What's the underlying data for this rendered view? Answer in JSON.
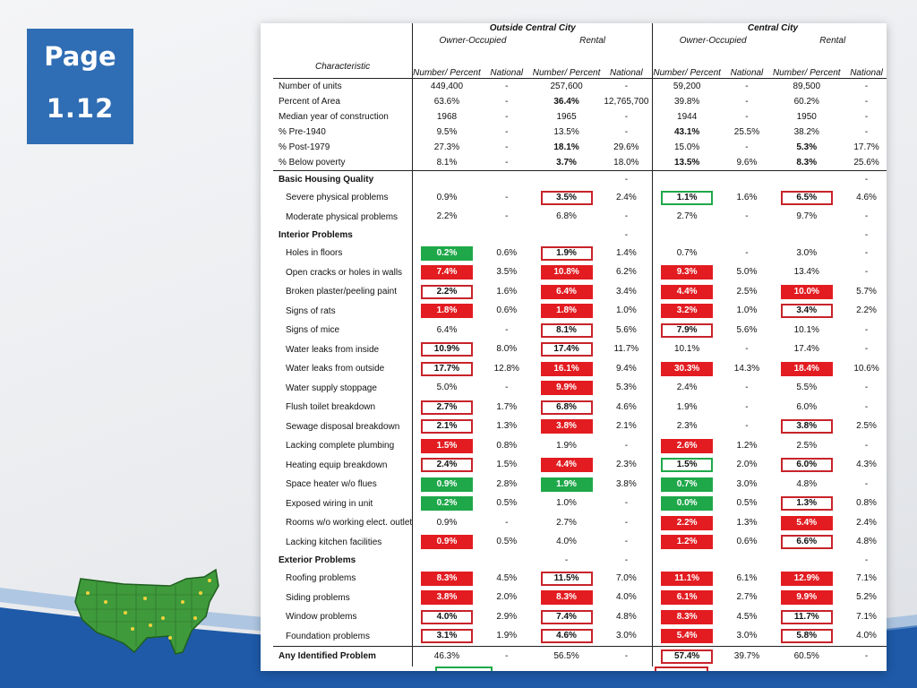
{
  "badge": {
    "line1": "Page",
    "line2": "1.12"
  },
  "colors": {
    "badge": "#2f6db4",
    "red": "#e21c21",
    "green": "#1fa84a",
    "box_red": "#c8232a",
    "wave_blue": "#1e5aa8"
  },
  "header": {
    "group_outside": "Outside Central City",
    "group_central": "Central City",
    "sub_owner": "Owner-Occupied",
    "sub_rental": "Rental",
    "characteristic": "Characteristic",
    "number_percent": "Number/ Percent",
    "national": "National"
  },
  "rows": [
    {
      "label": "Number of units",
      "v": [
        "449,400",
        "-",
        "257,600",
        "-",
        "59,200",
        "-",
        "89,500",
        "-"
      ]
    },
    {
      "label": "Percent of Area",
      "v": [
        "63.6%",
        "-",
        "36.4%",
        "12,765,700",
        "39.8%",
        "-",
        "60.2%",
        "-"
      ],
      "bold": [
        2
      ]
    },
    {
      "label": "Median year of construction",
      "v": [
        "1968",
        "-",
        "1965",
        "-",
        "1944",
        "-",
        "1950",
        "-"
      ]
    },
    {
      "label": "% Pre-1940",
      "v": [
        "9.5%",
        "-",
        "13.5%",
        "-",
        "43.1%",
        "25.5%",
        "38.2%",
        "-"
      ],
      "bold": [
        4
      ]
    },
    {
      "label": "% Post-1979",
      "v": [
        "27.3%",
        "-",
        "18.1%",
        "29.6%",
        "15.0%",
        "-",
        "5.3%",
        "17.7%"
      ],
      "bold": [
        2,
        6
      ]
    },
    {
      "label": "% Below poverty",
      "v": [
        "8.1%",
        "-",
        "3.7%",
        "18.0%",
        "13.5%",
        "9.6%",
        "8.3%",
        "25.6%"
      ],
      "bold": [
        2,
        4,
        6
      ]
    },
    {
      "section": "Basic Housing Quality",
      "v": [
        "",
        "",
        "",
        "-",
        "",
        "",
        "",
        "-"
      ]
    },
    {
      "label": "Severe physical problems",
      "v": [
        "0.9%",
        "-",
        "3.5%",
        "2.4%",
        "1.1%",
        "1.6%",
        "6.5%",
        "4.6%"
      ],
      "box": [
        2,
        6
      ],
      "gbox": [
        4
      ]
    },
    {
      "label": "Moderate physical problems",
      "v": [
        "2.2%",
        "-",
        "6.8%",
        "-",
        "2.7%",
        "-",
        "9.7%",
        "-"
      ]
    },
    {
      "section": "Interior Problems",
      "v": [
        "",
        "",
        "",
        "-",
        "",
        "",
        "",
        "-"
      ]
    },
    {
      "label": "Holes in floors",
      "v": [
        "0.2%",
        "0.6%",
        "1.9%",
        "1.4%",
        "0.7%",
        "-",
        "3.0%",
        "-"
      ],
      "grn": [
        0
      ],
      "box": [
        2
      ]
    },
    {
      "label": "Open cracks or holes in walls",
      "v": [
        "7.4%",
        "3.5%",
        "10.8%",
        "6.2%",
        "9.3%",
        "5.0%",
        "13.4%",
        "-"
      ],
      "red": [
        0,
        2,
        4
      ]
    },
    {
      "label": "Broken plaster/peeling paint",
      "v": [
        "2.2%",
        "1.6%",
        "6.4%",
        "3.4%",
        "4.4%",
        "2.5%",
        "10.0%",
        "5.7%"
      ],
      "box": [
        0
      ],
      "red": [
        2,
        4,
        6
      ]
    },
    {
      "label": "Signs of rats",
      "v": [
        "1.8%",
        "0.6%",
        "1.8%",
        "1.0%",
        "3.2%",
        "1.0%",
        "3.4%",
        "2.2%"
      ],
      "red": [
        0,
        2,
        4
      ],
      "box": [
        6
      ]
    },
    {
      "label": "Signs of mice",
      "v": [
        "6.4%",
        "-",
        "8.1%",
        "5.6%",
        "7.9%",
        "5.6%",
        "10.1%",
        "-"
      ],
      "box": [
        2,
        4
      ]
    },
    {
      "label": "Water leaks from inside",
      "v": [
        "10.9%",
        "8.0%",
        "17.4%",
        "11.7%",
        "10.1%",
        "-",
        "17.4%",
        "-"
      ],
      "box": [
        0,
        2
      ]
    },
    {
      "label": "Water leaks from outside",
      "v": [
        "17.7%",
        "12.8%",
        "16.1%",
        "9.4%",
        "30.3%",
        "14.3%",
        "18.4%",
        "10.6%"
      ],
      "box": [
        0
      ],
      "red": [
        2,
        4,
        6
      ]
    },
    {
      "label": "Water supply stoppage",
      "v": [
        "5.0%",
        "-",
        "9.9%",
        "5.3%",
        "2.4%",
        "-",
        "5.5%",
        "-"
      ],
      "red": [
        2
      ]
    },
    {
      "label": "Flush toilet breakdown",
      "v": [
        "2.7%",
        "1.7%",
        "6.8%",
        "4.6%",
        "1.9%",
        "-",
        "6.0%",
        "-"
      ],
      "box": [
        0,
        2
      ]
    },
    {
      "label": "Sewage disposal breakdown",
      "v": [
        "2.1%",
        "1.3%",
        "3.8%",
        "2.1%",
        "2.3%",
        "-",
        "3.8%",
        "2.5%"
      ],
      "box": [
        0,
        6
      ],
      "red": [
        2
      ]
    },
    {
      "label": "Lacking complete plumbing",
      "v": [
        "1.5%",
        "0.8%",
        "1.9%",
        "-",
        "2.6%",
        "1.2%",
        "2.5%",
        "-"
      ],
      "red": [
        0,
        4
      ]
    },
    {
      "label": "Heating equip breakdown",
      "v": [
        "2.4%",
        "1.5%",
        "4.4%",
        "2.3%",
        "1.5%",
        "2.0%",
        "6.0%",
        "4.3%"
      ],
      "box": [
        0,
        6
      ],
      "red": [
        2
      ],
      "gbox": [
        4
      ]
    },
    {
      "label": "Space heater w/o flues",
      "v": [
        "0.9%",
        "2.8%",
        "1.9%",
        "3.8%",
        "0.7%",
        "3.0%",
        "4.8%",
        "-"
      ],
      "grn": [
        0,
        2,
        4
      ]
    },
    {
      "label": "Exposed wiring in unit",
      "v": [
        "0.2%",
        "0.5%",
        "1.0%",
        "-",
        "0.0%",
        "0.5%",
        "1.3%",
        "0.8%"
      ],
      "grn": [
        0,
        4
      ],
      "box": [
        6
      ]
    },
    {
      "label": "Rooms w/o working elect. outlet",
      "v": [
        "0.9%",
        "-",
        "2.7%",
        "-",
        "2.2%",
        "1.3%",
        "5.4%",
        "2.4%"
      ],
      "red": [
        4,
        6
      ]
    },
    {
      "label": "Lacking kitchen facilities",
      "v": [
        "0.9%",
        "0.5%",
        "4.0%",
        "-",
        "1.2%",
        "0.6%",
        "6.6%",
        "4.8%"
      ],
      "red": [
        0,
        4
      ],
      "box": [
        6
      ]
    },
    {
      "section": "Exterior Problems",
      "v": [
        "",
        "",
        "-",
        "-",
        "",
        "",
        "",
        "-"
      ]
    },
    {
      "label": "Roofing problems",
      "v": [
        "8.3%",
        "4.5%",
        "11.5%",
        "7.0%",
        "11.1%",
        "6.1%",
        "12.9%",
        "7.1%"
      ],
      "red": [
        0,
        4,
        6
      ],
      "box": [
        2
      ]
    },
    {
      "label": "Siding problems",
      "v": [
        "3.8%",
        "2.0%",
        "8.3%",
        "4.0%",
        "6.1%",
        "2.7%",
        "9.9%",
        "5.2%"
      ],
      "red": [
        0,
        2,
        4,
        6
      ]
    },
    {
      "label": "Window problems",
      "v": [
        "4.0%",
        "2.9%",
        "7.4%",
        "4.8%",
        "8.3%",
        "4.5%",
        "11.7%",
        "7.1%"
      ],
      "box": [
        0,
        2,
        6
      ],
      "red": [
        4
      ]
    },
    {
      "label": "Foundation problems",
      "v": [
        "3.1%",
        "1.9%",
        "4.6%",
        "3.0%",
        "5.4%",
        "3.0%",
        "5.8%",
        "4.0%"
      ],
      "box": [
        0,
        2,
        6
      ],
      "red": [
        4
      ]
    },
    {
      "label": "Any Identified Problem",
      "total": true,
      "v": [
        "46.3%",
        "-",
        "56.5%",
        "-",
        "57.4%",
        "39.7%",
        "60.5%",
        "-"
      ],
      "box": [
        4
      ]
    }
  ]
}
